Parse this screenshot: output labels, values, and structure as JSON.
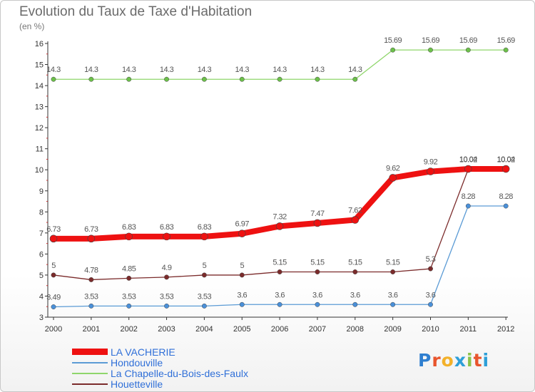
{
  "title": "Evolution du Taux de Taxe d'Habitation",
  "subtitle": "(en %)",
  "logo": {
    "text": "Proxiti",
    "letter_colors": [
      "#2f7fd0",
      "#e8552d",
      "#f3b12a",
      "#2e9fd8",
      "#8bc34a",
      "#e8552d",
      "#2e9fd8"
    ]
  },
  "chart_data": {
    "type": "line",
    "title": "Evolution du Taux de Taxe d'Habitation",
    "ylabel": "(en %)",
    "xlabel": "",
    "ylim": [
      3,
      16
    ],
    "yticks": [
      3,
      4,
      5,
      6,
      7,
      8,
      9,
      10,
      11,
      12,
      13,
      14,
      15,
      16
    ],
    "x": [
      "2000",
      "2001",
      "2002",
      "2003",
      "2004",
      "2005",
      "2006",
      "2007",
      "2008",
      "2009",
      "2010",
      "2011",
      "2012"
    ],
    "grid": false,
    "legend_position": "bottom-left",
    "series": [
      {
        "name": "Hondouville",
        "color": "#5b9bd5",
        "marker": "#4a90d9",
        "values": [
          3.49,
          3.53,
          3.53,
          3.53,
          3.53,
          3.6,
          3.6,
          3.6,
          3.6,
          3.6,
          3.6,
          8.28,
          8.28
        ],
        "labels": [
          "3.49",
          "3.53",
          "3.53",
          "3.53",
          "3.53",
          "3.6",
          "3.6",
          "3.6",
          "3.6",
          "3.6",
          "3.6",
          "8.28",
          "8.28"
        ]
      },
      {
        "name": "La Chapelle-du-Bois-des-Faulx",
        "color": "#8fd66b",
        "marker": "#6cc04a",
        "values": [
          14.3,
          14.3,
          14.3,
          14.3,
          14.3,
          14.3,
          14.3,
          14.3,
          14.3,
          15.69,
          15.69,
          15.69,
          15.69
        ],
        "labels": [
          "14.3",
          "14.3",
          "14.3",
          "14.3",
          "14.3",
          "14.3",
          "14.3",
          "14.3",
          "14.3",
          "15.69",
          "15.69",
          "15.69",
          "15.69"
        ]
      },
      {
        "name": "Houetteville",
        "color": "#7b2b2b",
        "marker": "#7b2b2b",
        "values": [
          5,
          4.78,
          4.85,
          4.9,
          5,
          5,
          5.15,
          5.15,
          5.15,
          5.15,
          5.3,
          10.02,
          10.02
        ],
        "labels": [
          "5",
          "4.78",
          "4.85",
          "4.9",
          "5",
          "5",
          "5.15",
          "5.15",
          "5.15",
          "5.15",
          "5.3",
          "10.02",
          "10.02"
        ]
      },
      {
        "name": "LA VACHERIE",
        "color": "#ee1111",
        "marker": "#ee1111",
        "values": [
          6.73,
          6.73,
          6.83,
          6.83,
          6.83,
          6.97,
          7.32,
          7.47,
          7.62,
          9.62,
          9.92,
          10.04,
          10.04
        ],
        "labels": [
          "6.73",
          "6.73",
          "6.83",
          "6.83",
          "6.83",
          "6.97",
          "7.32",
          "7.47",
          "7.62",
          "9.62",
          "9.92",
          "10.04",
          "10.04"
        ]
      }
    ],
    "legend": [
      "LA VACHERIE",
      "Hondouville",
      "La Chapelle-du-Bois-des-Faulx",
      "Houetteville"
    ]
  }
}
